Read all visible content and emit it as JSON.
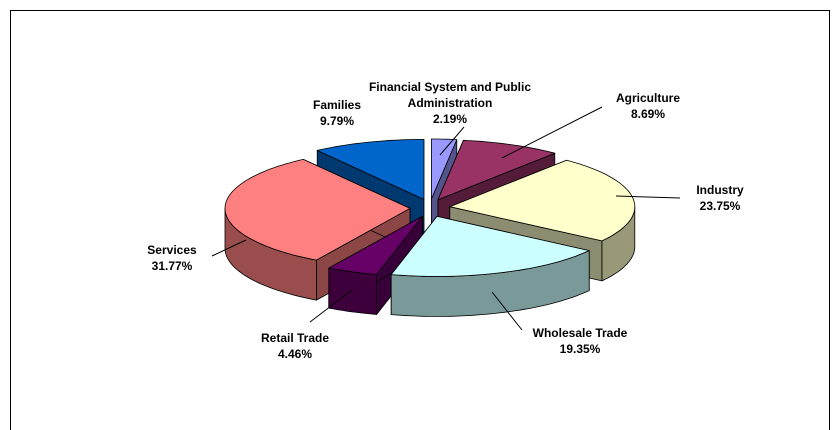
{
  "chart_data": {
    "type": "pie3d",
    "categories": [
      "Financial System and Public Administration",
      "Agriculture",
      "Industry",
      "Wholesale Trade",
      "Retail Trade",
      "Services",
      "Families"
    ],
    "values": [
      2.19,
      8.69,
      23.75,
      19.35,
      4.46,
      31.77,
      9.79
    ],
    "value_labels": [
      "2.19%",
      "8.69%",
      "23.75%",
      "19.35%",
      "4.46%",
      "31.77%",
      "9.79%"
    ],
    "colors": [
      "#9999ff",
      "#993366",
      "#ffffcc",
      "#ccffff",
      "#660066",
      "#ff8080",
      "#0066cc"
    ]
  }
}
